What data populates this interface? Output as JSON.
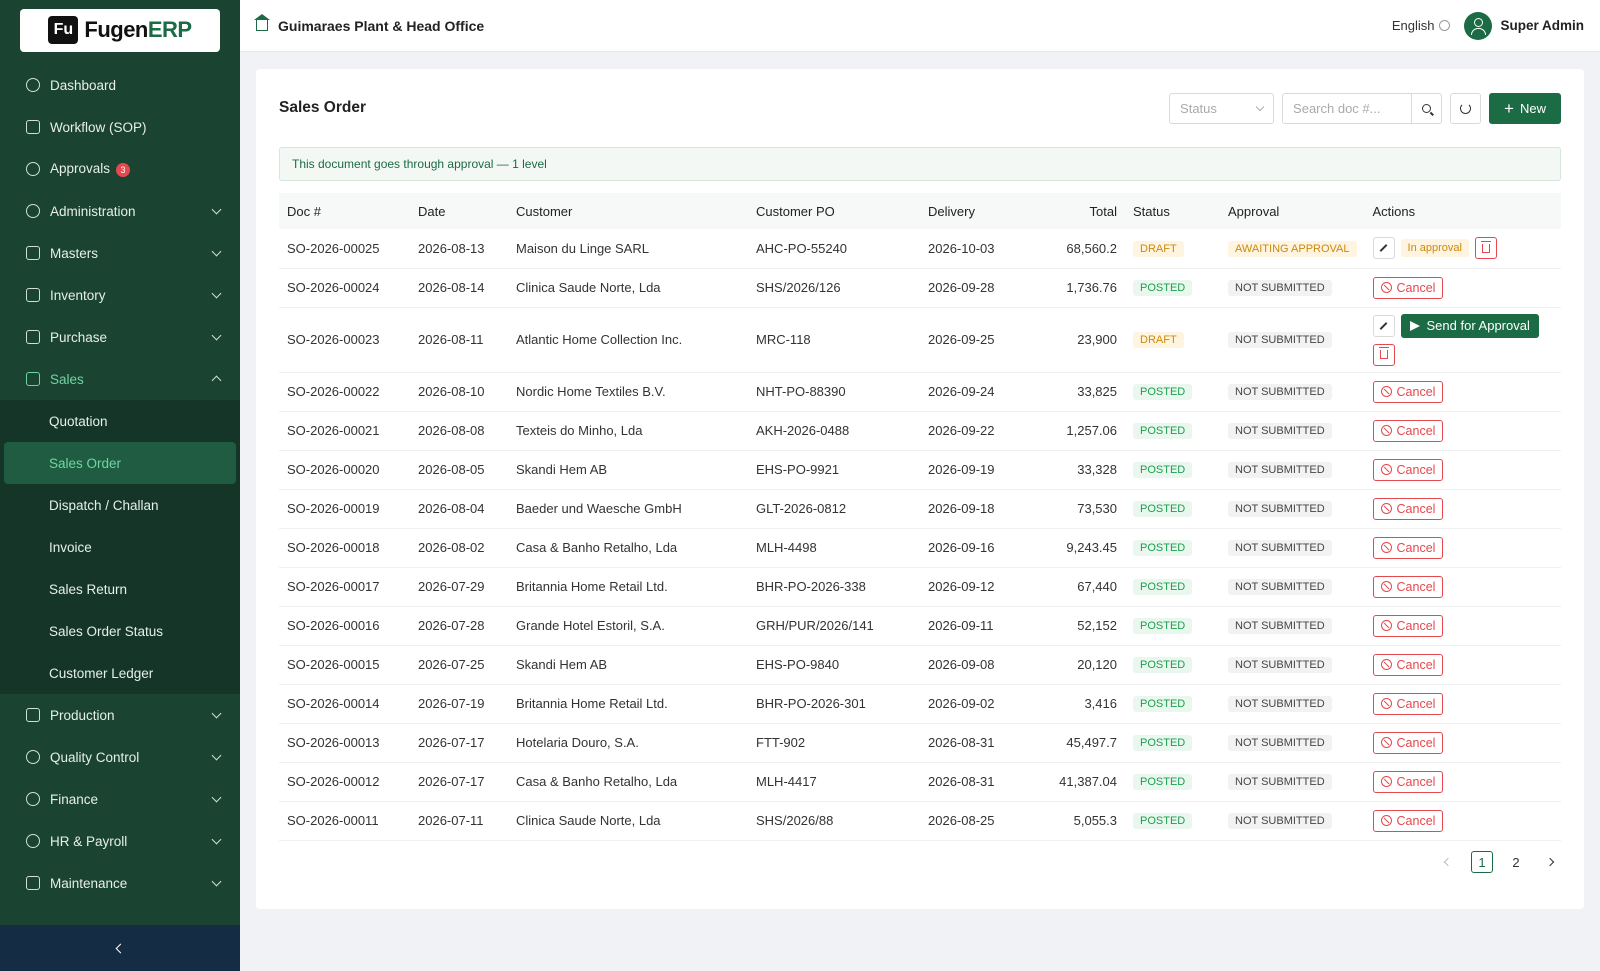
{
  "brand": {
    "mark": "Fu",
    "name_a": "Fugen",
    "name_b": "ERP"
  },
  "header": {
    "org": "Guimaraes Plant & Head Office",
    "language": "English",
    "user": "Super Admin"
  },
  "sidebar": {
    "items": [
      {
        "label": "Dashboard",
        "icon": "dashboard-icon"
      },
      {
        "label": "Workflow (SOP)",
        "icon": "workflow-icon"
      },
      {
        "label": "Approvals",
        "icon": "approvals-icon",
        "badge": "3"
      },
      {
        "label": "Administration",
        "icon": "settings-icon"
      },
      {
        "label": "Masters",
        "icon": "masters-icon"
      },
      {
        "label": "Inventory",
        "icon": "inventory-icon"
      },
      {
        "label": "Purchase",
        "icon": "cart-icon"
      },
      {
        "label": "Sales",
        "icon": "bag-icon"
      }
    ],
    "sales_sub": [
      "Quotation",
      "Sales Order",
      "Dispatch / Challan",
      "Invoice",
      "Sales Return",
      "Sales Order Status",
      "Customer Ledger"
    ],
    "items_after": [
      {
        "label": "Production",
        "icon": "production-icon"
      },
      {
        "label": "Quality Control",
        "icon": "shield-icon"
      },
      {
        "label": "Finance",
        "icon": "dollar-icon"
      },
      {
        "label": "HR & Payroll",
        "icon": "people-icon"
      },
      {
        "label": "Maintenance",
        "icon": "wrench-icon"
      }
    ]
  },
  "page": {
    "title": "Sales Order",
    "status_placeholder": "Status",
    "search_placeholder": "Search doc #...",
    "new_label": "New",
    "notice": "This document goes through approval — 1 level"
  },
  "table": {
    "headers": [
      "Doc #",
      "Date",
      "Customer",
      "Customer PO",
      "Delivery",
      "Total",
      "Status",
      "Approval",
      "Actions"
    ],
    "rows": [
      [
        "SO-2026-00025",
        "2026-08-13",
        "Maison du Linge SARL",
        "AHC-PO-55240",
        "2026-10-03",
        "68,560.2",
        "DRAFT",
        "AWAITING APPROVAL"
      ],
      [
        "SO-2026-00024",
        "2026-08-14",
        "Clinica Saude Norte, Lda",
        "SHS/2026/126",
        "2026-09-28",
        "1,736.76",
        "POSTED",
        "NOT SUBMITTED"
      ],
      [
        "SO-2026-00023",
        "2026-08-11",
        "Atlantic Home Collection Inc.",
        "MRC-118",
        "2026-09-25",
        "23,900",
        "DRAFT",
        "NOT SUBMITTED"
      ],
      [
        "SO-2026-00022",
        "2026-08-10",
        "Nordic Home Textiles B.V.",
        "NHT-PO-88390",
        "2026-09-24",
        "33,825",
        "POSTED",
        "NOT SUBMITTED"
      ],
      [
        "SO-2026-00021",
        "2026-08-08",
        "Texteis do Minho, Lda",
        "AKH-2026-0488",
        "2026-09-22",
        "1,257.06",
        "POSTED",
        "NOT SUBMITTED"
      ],
      [
        "SO-2026-00020",
        "2026-08-05",
        "Skandi Hem AB",
        "EHS-PO-9921",
        "2026-09-19",
        "33,328",
        "POSTED",
        "NOT SUBMITTED"
      ],
      [
        "SO-2026-00019",
        "2026-08-04",
        "Baeder und Waesche GmbH",
        "GLT-2026-0812",
        "2026-09-18",
        "73,530",
        "POSTED",
        "NOT SUBMITTED"
      ],
      [
        "SO-2026-00018",
        "2026-08-02",
        "Casa & Banho Retalho, Lda",
        "MLH-4498",
        "2026-09-16",
        "9,243.45",
        "POSTED",
        "NOT SUBMITTED"
      ],
      [
        "SO-2026-00017",
        "2026-07-29",
        "Britannia Home Retail Ltd.",
        "BHR-PO-2026-338",
        "2026-09-12",
        "67,440",
        "POSTED",
        "NOT SUBMITTED"
      ],
      [
        "SO-2026-00016",
        "2026-07-28",
        "Grande Hotel Estoril, S.A.",
        "GRH/PUR/2026/141",
        "2026-09-11",
        "52,152",
        "POSTED",
        "NOT SUBMITTED"
      ],
      [
        "SO-2026-00015",
        "2026-07-25",
        "Skandi Hem AB",
        "EHS-PO-9840",
        "2026-09-08",
        "20,120",
        "POSTED",
        "NOT SUBMITTED"
      ],
      [
        "SO-2026-00014",
        "2026-07-19",
        "Britannia Home Retail Ltd.",
        "BHR-PO-2026-301",
        "2026-09-02",
        "3,416",
        "POSTED",
        "NOT SUBMITTED"
      ],
      [
        "SO-2026-00013",
        "2026-07-17",
        "Hotelaria Douro, S.A.",
        "FTT-902",
        "2026-08-31",
        "45,497.7",
        "POSTED",
        "NOT SUBMITTED"
      ],
      [
        "SO-2026-00012",
        "2026-07-17",
        "Casa & Banho Retalho, Lda",
        "MLH-4417",
        "2026-08-31",
        "41,387.04",
        "POSTED",
        "NOT SUBMITTED"
      ],
      [
        "SO-2026-00011",
        "2026-07-11",
        "Clinica Saude Norte, Lda",
        "SHS/2026/88",
        "2026-08-25",
        "5,055.3",
        "POSTED",
        "NOT SUBMITTED"
      ]
    ],
    "actions": {
      "in_approval": "In approval",
      "cancel": "Cancel",
      "send": "Send for Approval"
    }
  },
  "pagination": {
    "pages": [
      "1",
      "2"
    ],
    "current": "1"
  },
  "colors": {
    "sidebar": "#1b4332",
    "accent": "#1b6b45",
    "danger": "#e5484d",
    "draft": "#c98a0e",
    "posted": "#1c9e4e"
  }
}
